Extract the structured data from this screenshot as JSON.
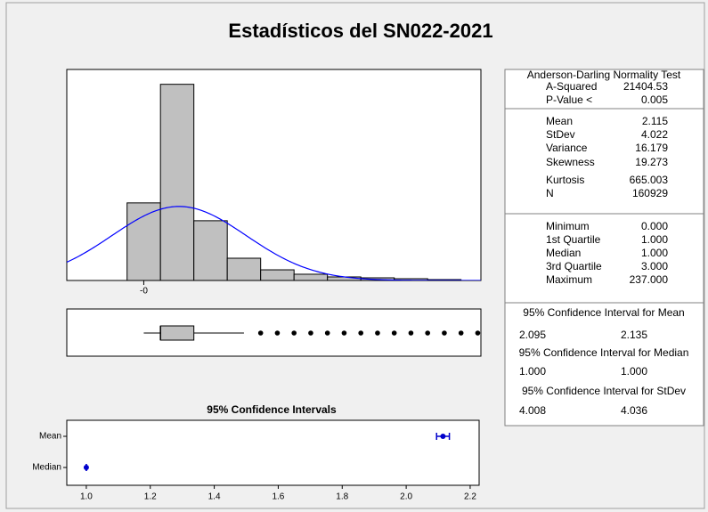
{
  "title": "Estadísticos del SN022-2021",
  "chart_data": [
    {
      "type": "histogram",
      "bins": [
        -1,
        1,
        3,
        5,
        7,
        9,
        11,
        13,
        15,
        17,
        19
      ],
      "counts": [
        33460,
        84600,
        25770,
        9600,
        4600,
        2700,
        1540,
        1150,
        770,
        380
      ],
      "color": "#c0c0c0",
      "xlim": [
        -4.61,
        20.19
      ],
      "ylim": [
        0,
        91000
      ],
      "xticks": [
        {
          "value": 0,
          "label": "-0"
        }
      ],
      "fit": {
        "mean": 2.115,
        "stdev": 4.022,
        "n": 160929,
        "color": "#0000ff"
      }
    },
    {
      "type": "box",
      "q1": 1,
      "median": 1,
      "q3": 3,
      "whisker_low": 0,
      "whisker_high": 6,
      "outliers": [
        7,
        8,
        9,
        10,
        11,
        12,
        13,
        14,
        15,
        16,
        17,
        18,
        19,
        20
      ],
      "xlim": [
        -4.61,
        20.19
      ],
      "color": "#c0c0c0"
    },
    {
      "type": "interval",
      "title": "95% Confidence Intervals",
      "categories": [
        "Mean",
        "Median"
      ],
      "values": [
        2.115,
        1.0
      ],
      "lower": [
        2.095,
        1.0
      ],
      "upper": [
        2.135,
        1.0
      ],
      "xlim": [
        0.939,
        2.228
      ],
      "xticks": [
        {
          "value": 1,
          "label": "1.0"
        },
        {
          "value": 1.2,
          "label": "1.2"
        },
        {
          "value": 1.4,
          "label": "1.4"
        },
        {
          "value": 1.6,
          "label": "1.6"
        },
        {
          "value": 1.8,
          "label": "1.8"
        },
        {
          "value": 2,
          "label": "2.0"
        },
        {
          "value": 2.2,
          "label": "2.2"
        }
      ],
      "color": "#0000cc"
    }
  ],
  "stats": {
    "sections": [
      {
        "heading": "Anderson-Darling Normality Test",
        "rows": [
          [
            "A-Squared",
            "21404.53"
          ],
          [
            "P-Value <",
            "0.005"
          ]
        ]
      },
      {
        "rows": [
          [
            "Mean",
            "2.115"
          ],
          [
            "StDev",
            "4.022"
          ],
          [
            "Variance",
            "16.179"
          ],
          [
            "Skewness",
            "19.273"
          ],
          [
            "Kurtosis",
            "665.003"
          ],
          [
            "N",
            "160929"
          ]
        ]
      },
      {
        "rows": [
          [
            "Minimum",
            "0.000"
          ],
          [
            "1st Quartile",
            "1.000"
          ],
          [
            "Median",
            "1.000"
          ],
          [
            "3rd Quartile",
            "3.000"
          ],
          [
            "Maximum",
            "237.000"
          ]
        ]
      },
      {
        "heading": "95% Confidence Interval for Mean",
        "rows": [
          [
            "2.095",
            "2.135"
          ]
        ]
      },
      {
        "heading": "95% Confidence Interval for Median",
        "rows": [
          [
            "1.000",
            "1.000"
          ]
        ]
      },
      {
        "heading": "95% Confidence Interval for StDev",
        "rows": [
          [
            "4.008",
            "4.036"
          ]
        ]
      }
    ]
  }
}
